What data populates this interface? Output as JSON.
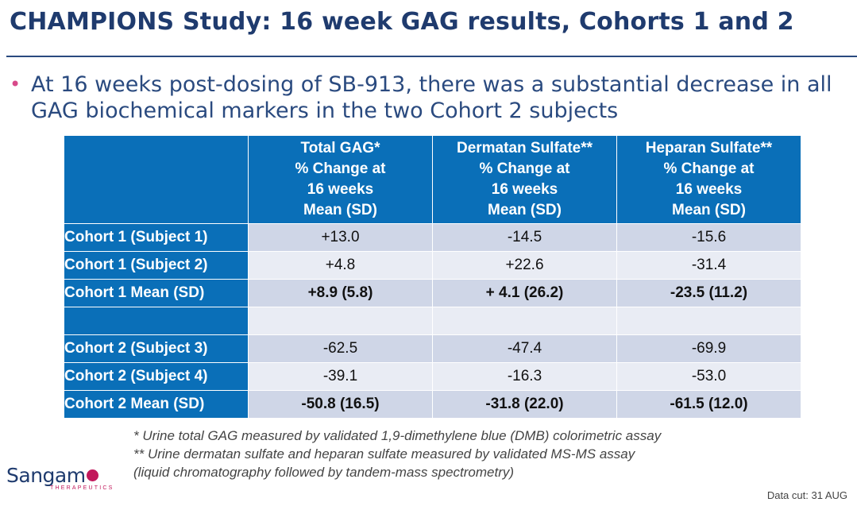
{
  "title": "CHAMPIONS Study: 16 week GAG results, Cohorts 1 and 2",
  "bullet": {
    "symbol": "•",
    "text": "At 16 weeks post-dosing of SB-913, there was a substantial decrease in all GAG biochemical markers in the two Cohort 2 subjects"
  },
  "table": {
    "headers": [
      [
        "Total GAG*",
        "% Change at",
        "16 weeks",
        "Mean (SD)"
      ],
      [
        "Dermatan Sulfate**",
        "% Change at",
        "16 weeks",
        "Mean (SD)"
      ],
      [
        "Heparan Sulfate**",
        "% Change at",
        "16 weeks",
        "Mean (SD)"
      ]
    ],
    "rows": [
      {
        "label": "Cohort 1 (Subject 1)",
        "values": [
          "+13.0",
          "-14.5",
          "-15.6"
        ]
      },
      {
        "label": "Cohort 1 (Subject 2)",
        "values": [
          "+4.8",
          "+22.6",
          "-31.4"
        ]
      },
      {
        "label": "Cohort 1 Mean (SD)",
        "values": [
          "+8.9 (5.8)",
          "+ 4.1 (26.2)",
          "-23.5 (11.2)"
        ]
      },
      {
        "label": "",
        "values": [
          "",
          "",
          ""
        ]
      },
      {
        "label": "Cohort 2 (Subject 3)",
        "values": [
          "-62.5",
          "-47.4",
          "-69.9"
        ]
      },
      {
        "label": "Cohort 2 (Subject 4)",
        "values": [
          "-39.1",
          "-16.3",
          "-53.0"
        ]
      },
      {
        "label": "Cohort 2 Mean (SD)",
        "values": [
          "-50.8 (16.5)",
          "-31.8 (22.0)",
          "-61.5 (12.0)"
        ]
      }
    ]
  },
  "footnotes": [
    "* Urine total GAG measured by validated 1,9-dimethylene blue (DMB) colorimetric assay",
    "** Urine dermatan sulfate and heparan sulfate measured by validated MS-MS assay",
    "(liquid chromatography followed by tandem-mass spectrometry)"
  ],
  "logo": {
    "word": "Sangam",
    "subtitle": "THERAPEUTICS"
  },
  "data_cut": "Data cut: 31 AUG",
  "colors": {
    "header_blue": "#0a6fb8",
    "title_navy": "#1f3b6e",
    "row_dark": "#cfd6e7",
    "row_light": "#e9ecf4",
    "accent_magenta": "#c2185b"
  }
}
